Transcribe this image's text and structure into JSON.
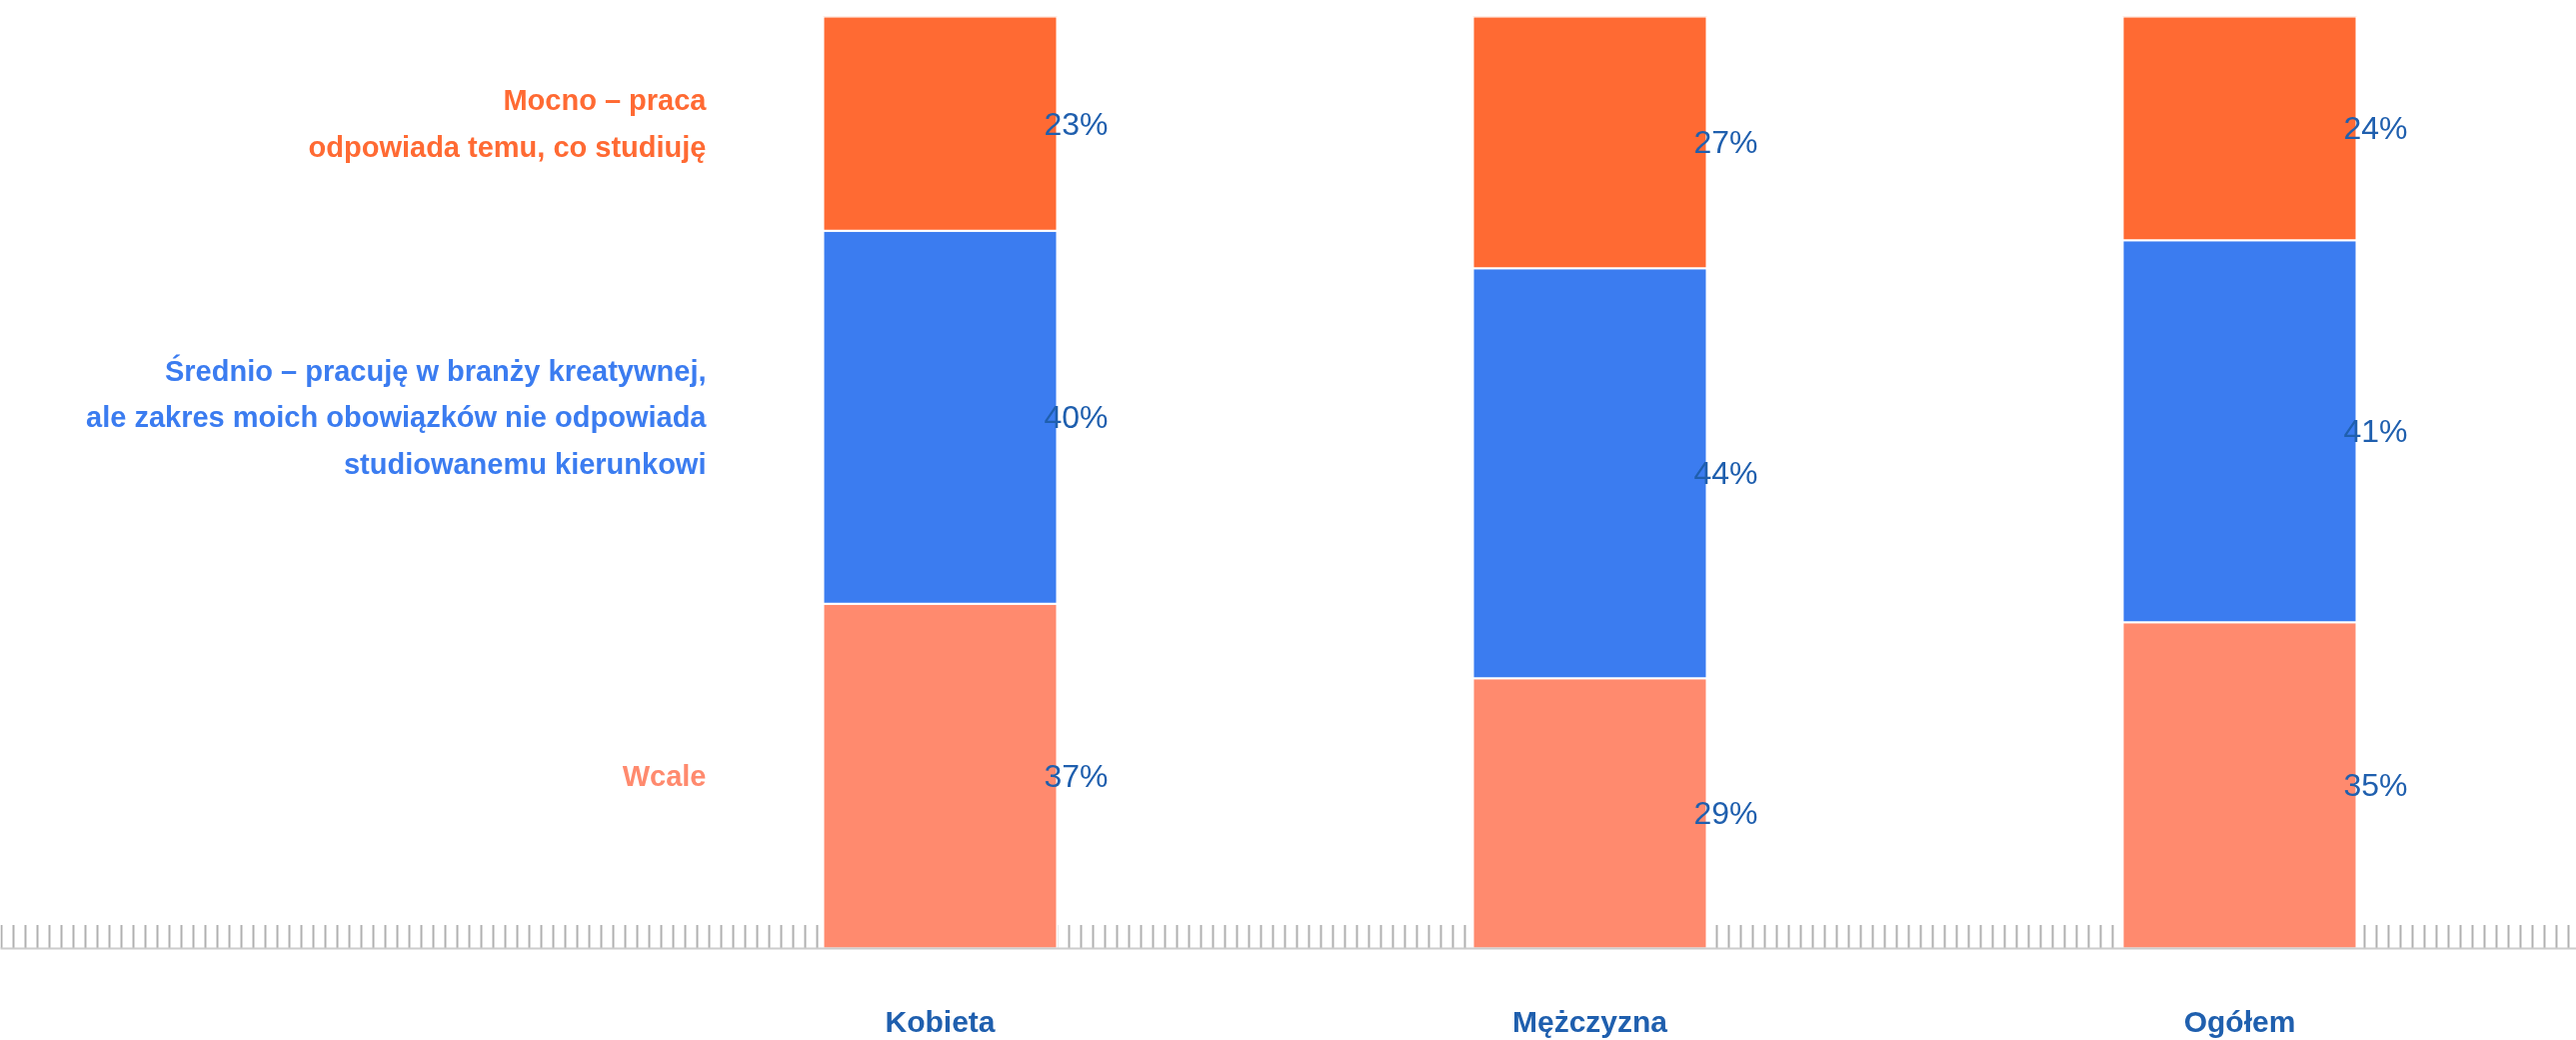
{
  "chart_data": {
    "type": "bar",
    "stacked": true,
    "categories": [
      "Kobieta",
      "Mężczyzna",
      "Ogółem"
    ],
    "series": [
      {
        "name": "Wcale",
        "color": "#ff8a6e",
        "values": [
          37,
          29,
          35
        ],
        "value_labels": [
          "37%",
          "29%",
          "35%"
        ]
      },
      {
        "name": "Średnio – pracuję w branży kreatywnej,\nale zakres moich obowiązków nie odpowiada\nstudiowanemu kierunkowi",
        "color": "#3b7cf0",
        "values": [
          40,
          44,
          41
        ],
        "value_labels": [
          "40%",
          "44%",
          "41%"
        ]
      },
      {
        "name": "Mocno – praca\nodpowiada temu, co studiuję",
        "color": "#ff6a33",
        "values": [
          23,
          27,
          24
        ],
        "value_labels": [
          "23%",
          "27%",
          "24%"
        ]
      }
    ],
    "grid": "y",
    "tick_labels": "x"
  }
}
